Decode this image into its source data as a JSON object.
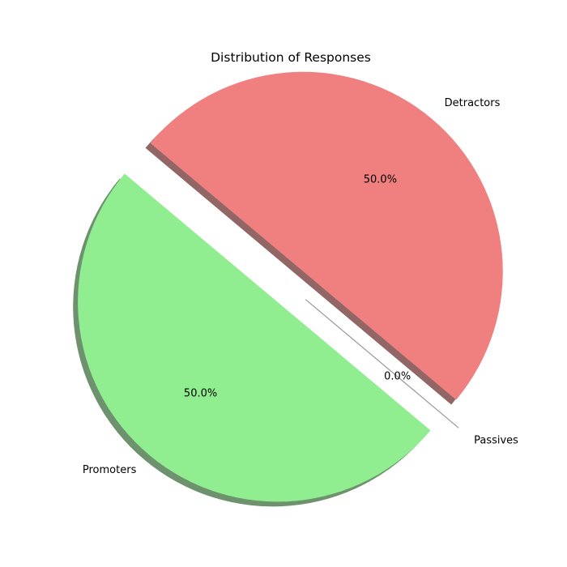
{
  "chart_data": {
    "type": "pie",
    "title": "Distribution of Responses",
    "slices": [
      {
        "label": "Promoters",
        "value": 50.0,
        "pct_label": "50.0%",
        "color": "#90ee90",
        "explode": 0.1
      },
      {
        "label": "Passives",
        "value": 0.0,
        "pct_label": "0.0%",
        "color": "#add8e6",
        "explode": 0.1
      },
      {
        "label": "Detractors",
        "value": 50.0,
        "pct_label": "50.0%",
        "color": "#f08080",
        "explode": 0.1
      }
    ],
    "start_angle_deg": 140,
    "shadow": true,
    "autopct": "%1.1f%%"
  }
}
